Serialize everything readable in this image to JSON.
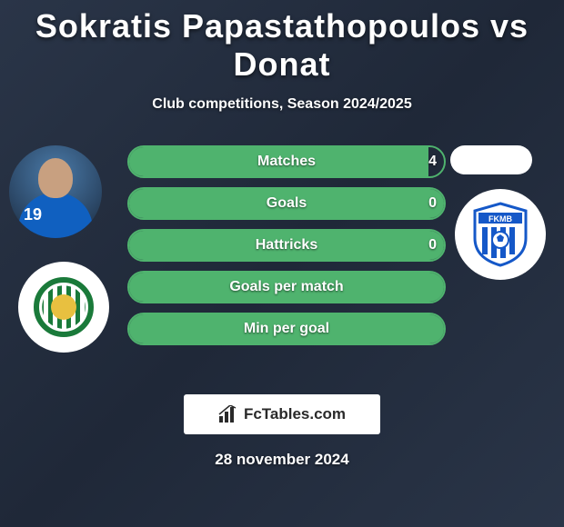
{
  "title": "Sokratis Papastathopoulos vs Donat",
  "subtitle": "Club competitions, Season 2024/2025",
  "date": "28 november 2024",
  "brand": "FcTables.com",
  "player_left": {
    "shirt_number": "19"
  },
  "colors": {
    "bar_border": "#4fb36e",
    "bar_fill": "#4fb36e",
    "background_start": "#2a3548",
    "background_end": "#1f2838",
    "right_pill": "#ffffff",
    "text": "#ffffff"
  },
  "bars": [
    {
      "label": "Matches",
      "left_value": "4",
      "fill_pct": 95,
      "show_left_value": true
    },
    {
      "label": "Goals",
      "left_value": "0",
      "fill_pct": 100,
      "show_left_value": true
    },
    {
      "label": "Hattricks",
      "left_value": "0",
      "fill_pct": 100,
      "show_left_value": true
    },
    {
      "label": "Goals per match",
      "left_value": "",
      "fill_pct": 100,
      "show_left_value": false
    },
    {
      "label": "Min per goal",
      "left_value": "",
      "fill_pct": 100,
      "show_left_value": false
    }
  ],
  "club_right_logo": {
    "band_color": "#1558c8",
    "stripe_colors": [
      "#1558c8",
      "#ffffff"
    ],
    "text": "FKMB"
  }
}
